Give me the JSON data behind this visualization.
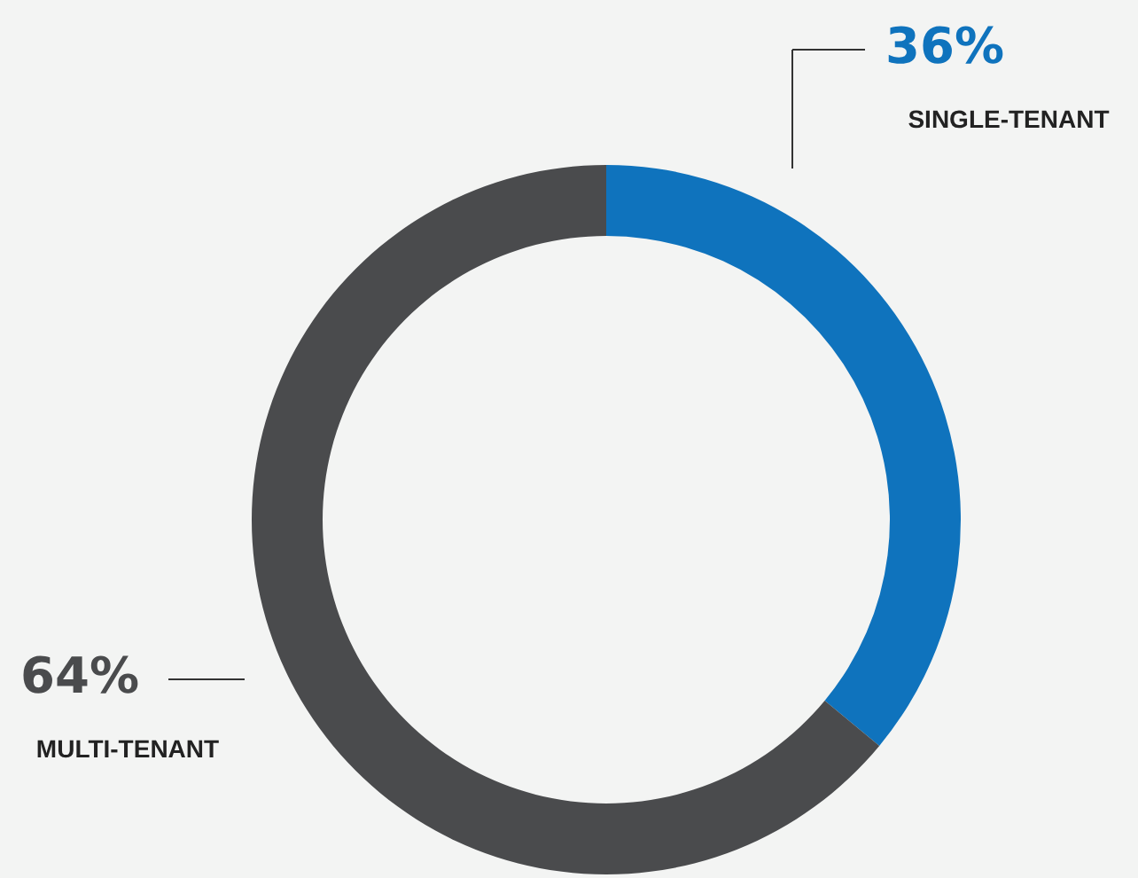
{
  "chart_data": {
    "type": "donut",
    "categories": [
      "SINGLE-TENANT",
      "MULTI-TENANT"
    ],
    "values": [
      36,
      64
    ],
    "colors": [
      "#0f73bd",
      "#4a4b4d"
    ],
    "value_labels": [
      "36%",
      "64%"
    ],
    "legend": false
  }
}
